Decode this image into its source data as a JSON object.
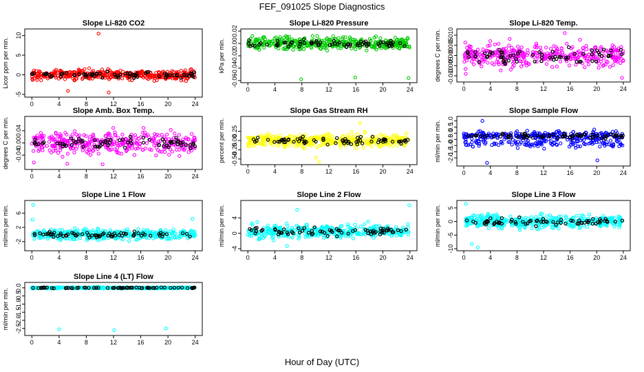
{
  "suptitle": "FEF_091025  Slope Diagnostics",
  "xlabel": "Hour of Day (UTC)",
  "colors": {
    "co2": "#ff0000",
    "pressure": "#00cc00",
    "temp": "#ff00ff",
    "box": "#ff00ff",
    "rh": "#ffff00",
    "sample": "#0000ff",
    "line": "#00ffff",
    "overlay": "#000000"
  },
  "chart_data": [
    {
      "type": "scatter",
      "title": "Slope Li-820 CO2",
      "ylabel": "Licor ppm per min.",
      "xlim": [
        0,
        24
      ],
      "ylim": [
        -5,
        11
      ],
      "xticks": [
        0,
        4,
        8,
        12,
        16,
        20,
        24
      ],
      "yticks": [
        -5,
        0,
        5,
        10
      ],
      "ytick_labels": [
        "-5",
        "0",
        "5",
        "10"
      ],
      "color": "#ff0000",
      "summary": {
        "center": 0,
        "spread": 0.9,
        "extremes": [
          [
            9.8,
            10.5
          ],
          [
            11.3,
            -4.5
          ],
          [
            5.3,
            -4.1
          ]
        ]
      }
    },
    {
      "type": "scatter",
      "title": "Slope Li-820 Pressure",
      "ylabel": "kPa per min.",
      "xlim": [
        0,
        24
      ],
      "ylim": [
        -0.06,
        0.02
      ],
      "xticks": [
        0,
        4,
        8,
        12,
        16,
        20,
        24
      ],
      "yticks": [
        -0.06,
        -0.04,
        -0.02,
        0.0,
        0.02
      ],
      "ytick_labels": [
        "-0.06",
        "-0.04",
        "-0.02",
        "0.00",
        "0.02"
      ],
      "color": "#00cc00",
      "summary": {
        "center": 0.0,
        "spread": 0.007,
        "extremes": [
          [
            7.9,
            -0.058
          ],
          [
            15.9,
            -0.055
          ],
          [
            23.8,
            -0.056
          ]
        ]
      }
    },
    {
      "type": "scatter",
      "title": "Slope Li-820 Temp.",
      "ylabel": "degrees C per min.",
      "xlim": [
        0,
        24
      ],
      "ylim": [
        -0.012,
        0.012
      ],
      "xticks": [
        0,
        4,
        8,
        12,
        16,
        20,
        24
      ],
      "yticks": [
        -0.01,
        -0.005,
        0.0,
        0.005,
        0.01
      ],
      "ytick_labels": [
        "-0.010",
        "-0.005",
        "0.000",
        "0.005",
        "0.010"
      ],
      "color": "#ff00ff",
      "summary": {
        "center": 0.0,
        "spread": 0.004,
        "extremes": [
          [
            15.2,
            0.011
          ],
          [
            23.8,
            -0.011
          ],
          [
            0.3,
            -0.009
          ]
        ]
      }
    },
    {
      "type": "scatter",
      "title": "Slope Amb. Box Temp.",
      "ylabel": "degrees C per min.",
      "xlim": [
        0,
        24
      ],
      "ylim": [
        -0.08,
        0.08
      ],
      "xticks": [
        0,
        4,
        8,
        12,
        16,
        20,
        24
      ],
      "yticks": [
        -0.04,
        0.0,
        0.04
      ],
      "ytick_labels": [
        "-0.04",
        "0.00",
        "0.04"
      ],
      "color": "#ff00ff",
      "summary": {
        "center": 0.0,
        "spread": 0.025,
        "extremes": [
          [
            10.4,
            -0.07
          ],
          [
            0.3,
            -0.064
          ],
          [
            5.2,
            -0.068
          ]
        ]
      }
    },
    {
      "type": "scatter",
      "title": "Slope Gas Stream RH",
      "ylabel": "percent per min.",
      "xlim": [
        0,
        24
      ],
      "ylim": [
        -0.6,
        0.6
      ],
      "xticks": [
        0,
        4,
        8,
        12,
        16,
        20,
        24
      ],
      "yticks": [
        -0.5,
        -0.25,
        0.0,
        0.25
      ],
      "ytick_labels": [
        "-0.50",
        "-0.25",
        "0.00",
        "0.25"
      ],
      "color": "#ffff00",
      "summary": {
        "center": 0.0,
        "spread": 0.12,
        "extremes": [
          [
            10.5,
            -0.57
          ],
          [
            10.1,
            -0.46
          ],
          [
            16.6,
            0.47
          ]
        ]
      }
    },
    {
      "type": "scatter",
      "title": "Slope Sample Flow",
      "ylabel": "ml/min per min.",
      "xlim": [
        0,
        24
      ],
      "ylim": [
        -2.5,
        1.2
      ],
      "xticks": [
        0,
        4,
        8,
        12,
        16,
        20,
        24
      ],
      "yticks": [
        -2.0,
        -1.5,
        -1.0,
        -0.5,
        0.0,
        0.5,
        1.0
      ],
      "ytick_labels": [
        "-2.0",
        "-1.5",
        "-1.0",
        "-0.5",
        "0.0",
        "0.5",
        "1.0"
      ],
      "color": "#0000ff",
      "summary": {
        "center": -0.2,
        "spread": 0.25,
        "second_band": -0.8,
        "extremes": [
          [
            3.5,
            -2.4
          ],
          [
            2.8,
            1.0
          ],
          [
            20.1,
            -2.2
          ]
        ]
      }
    },
    {
      "type": "scatter",
      "title": "Slope Line 1 Flow",
      "ylabel": "ml/min per min.",
      "xlim": [
        0,
        24
      ],
      "ylim": [
        -4,
        9
      ],
      "xticks": [
        0,
        4,
        8,
        12,
        16,
        20,
        24
      ],
      "yticks": [
        -2,
        2,
        6
      ],
      "ytick_labels": [
        "-2",
        "2",
        "6"
      ],
      "color": "#00ffff",
      "summary": {
        "center": 0,
        "spread": 1.0,
        "extremes": [
          [
            0.2,
            8.3
          ],
          [
            0.1,
            4.2
          ],
          [
            23.6,
            4.4
          ]
        ]
      }
    },
    {
      "type": "scatter",
      "title": "Slope Line 2 Flow",
      "ylabel": "ml/min per min.",
      "xlim": [
        0,
        24
      ],
      "ylim": [
        -4,
        8
      ],
      "xticks": [
        0,
        4,
        8,
        12,
        16,
        20,
        24
      ],
      "yticks": [
        -4,
        0,
        4
      ],
      "ytick_labels": [
        "-4",
        "0",
        "4"
      ],
      "color": "#00ffff",
      "summary": {
        "center": 0.5,
        "spread": 1.2,
        "extremes": [
          [
            23.9,
            7.3
          ],
          [
            7.3,
            6.1
          ],
          [
            5.8,
            -3.3
          ]
        ]
      }
    },
    {
      "type": "scatter",
      "title": "Slope Line 3 Flow",
      "ylabel": "ml/min per min.",
      "xlim": [
        0,
        24
      ],
      "ylim": [
        -10,
        7
      ],
      "xticks": [
        0,
        4,
        8,
        12,
        16,
        20,
        24
      ],
      "yticks": [
        -10,
        -5,
        0,
        5
      ],
      "ytick_labels": [
        "-10",
        "-5",
        "0",
        "5"
      ],
      "color": "#00ffff",
      "summary": {
        "center": 0,
        "spread": 1.8,
        "extremes": [
          [
            0.3,
            6.5
          ],
          [
            2.1,
            -9.5
          ],
          [
            1.2,
            -8.2
          ]
        ]
      }
    },
    {
      "type": "scatter",
      "title": "Slope Line 4 (LT) Flow",
      "ylabel": "ml/min per min.",
      "xlim": [
        0,
        24
      ],
      "ylim": [
        -2.8,
        0.2
      ],
      "xticks": [
        0,
        4,
        8,
        12,
        16,
        20,
        24
      ],
      "yticks": [
        -2.5,
        -2.0,
        -1.5,
        -1.0,
        -0.5,
        0.0
      ],
      "ytick_labels": [
        "-2.5",
        "-2.0",
        "-1.5",
        "-1.0",
        "-0.5",
        "0.0"
      ],
      "color": "#00ffff",
      "summary": {
        "center": 0.0,
        "spread": 0.03,
        "extremes": [
          [
            4.0,
            -2.55
          ],
          [
            12.1,
            -2.6
          ],
          [
            19.7,
            -2.5
          ]
        ]
      }
    }
  ]
}
